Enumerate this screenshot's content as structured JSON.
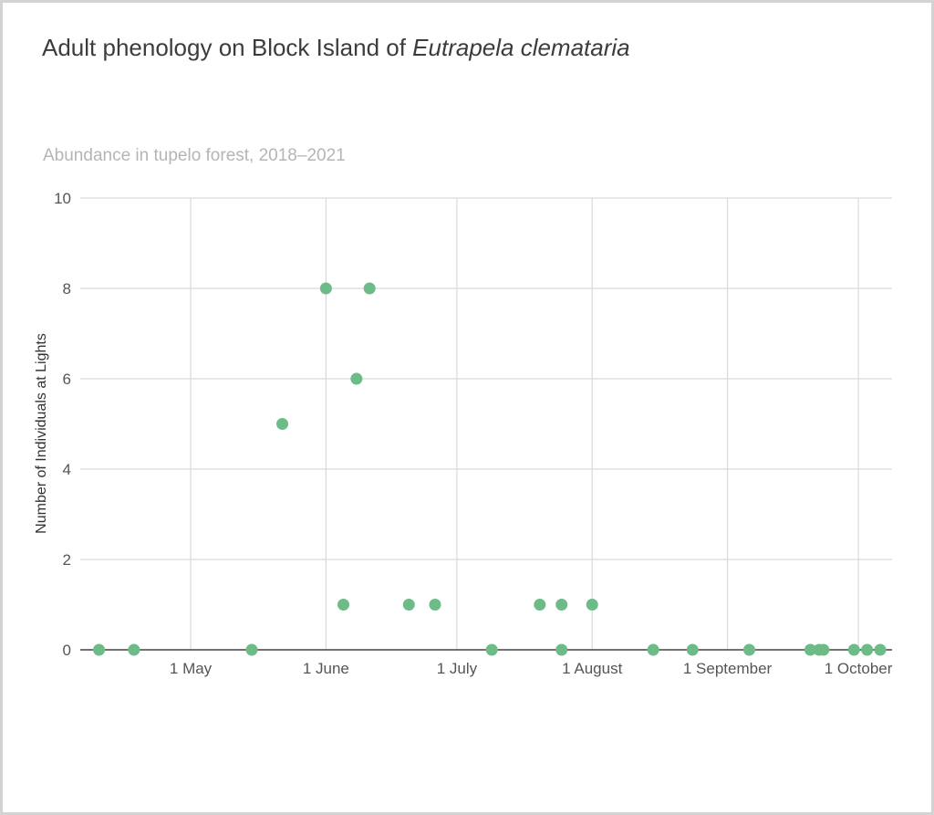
{
  "title": {
    "prefix": "Adult phenology on Block Island of ",
    "species": "Eutrapela clemataria"
  },
  "subtitle": "Abundance in tupelo forest, 2018–2021",
  "colors": {
    "point": "#6dbb86",
    "grid": "#d9d9d9",
    "axis": "#444444",
    "title": "#3c3c3c",
    "subtitle": "#b5b5b5"
  },
  "chart_data": {
    "type": "scatter",
    "title": "Adult phenology on Block Island of Eutrapela clemataria",
    "subtitle": "Abundance in tupelo forest, 2018–2021",
    "xlabel": "",
    "ylabel": "Number of Individuals at Lights",
    "xlim": [
      "2000-04-08",
      "2000-10-06"
    ],
    "ylim": [
      0,
      10
    ],
    "x_ticks": [
      {
        "date": "2000-05-01",
        "label": "1 May"
      },
      {
        "date": "2000-06-01",
        "label": "1 June"
      },
      {
        "date": "2000-07-01",
        "label": "1 July"
      },
      {
        "date": "2000-08-01",
        "label": "1 August"
      },
      {
        "date": "2000-09-01",
        "label": "1 September"
      },
      {
        "date": "2000-10-01",
        "label": "1 October"
      }
    ],
    "y_ticks": [
      0,
      2,
      4,
      6,
      8,
      10
    ],
    "grid": true,
    "points": [
      {
        "x": "2000-04-10",
        "y": 0
      },
      {
        "x": "2000-04-18",
        "y": 0
      },
      {
        "x": "2000-05-15",
        "y": 0
      },
      {
        "x": "2000-05-22",
        "y": 5
      },
      {
        "x": "2000-06-01",
        "y": 8
      },
      {
        "x": "2000-06-05",
        "y": 1
      },
      {
        "x": "2000-06-08",
        "y": 6
      },
      {
        "x": "2000-06-11",
        "y": 8
      },
      {
        "x": "2000-06-20",
        "y": 1
      },
      {
        "x": "2000-06-26",
        "y": 1
      },
      {
        "x": "2000-07-09",
        "y": 0
      },
      {
        "x": "2000-07-20",
        "y": 1
      },
      {
        "x": "2000-07-25",
        "y": 1
      },
      {
        "x": "2000-07-25",
        "y": 0
      },
      {
        "x": "2000-08-01",
        "y": 1
      },
      {
        "x": "2000-08-15",
        "y": 0
      },
      {
        "x": "2000-08-24",
        "y": 0
      },
      {
        "x": "2000-09-06",
        "y": 0
      },
      {
        "x": "2000-09-20",
        "y": 0
      },
      {
        "x": "2000-09-22",
        "y": 0
      },
      {
        "x": "2000-09-23",
        "y": 0
      },
      {
        "x": "2000-09-30",
        "y": 0
      },
      {
        "x": "2000-10-03",
        "y": 0
      },
      {
        "x": "2000-10-06",
        "y": 0
      }
    ]
  }
}
